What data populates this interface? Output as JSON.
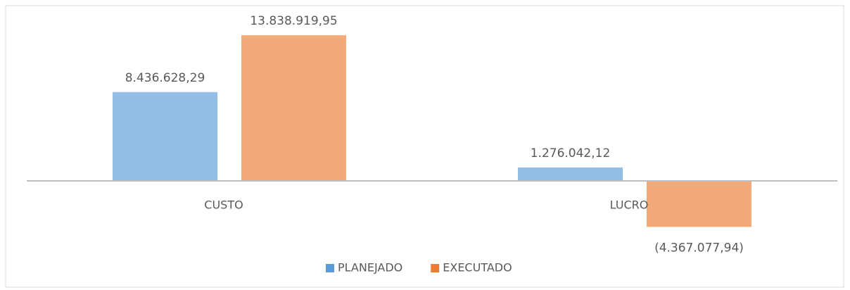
{
  "chart_data": {
    "type": "bar",
    "categories": [
      "CUSTO",
      "LUCRO"
    ],
    "series": [
      {
        "name": "PLANEJADO",
        "color": "#5b9bd5",
        "values": [
          8436628.29,
          1276042.12
        ],
        "value_labels": [
          "8.436.628,29",
          "1.276.042,12"
        ]
      },
      {
        "name": "EXECUTADO",
        "color": "#ed7d31",
        "values": [
          13838919.95,
          -4367077.94
        ],
        "value_labels": [
          "13.838.919,95",
          "(4.367.077,94)"
        ]
      }
    ],
    "ylim": [
      -6000000,
      16000000
    ],
    "legend": "bottom"
  }
}
